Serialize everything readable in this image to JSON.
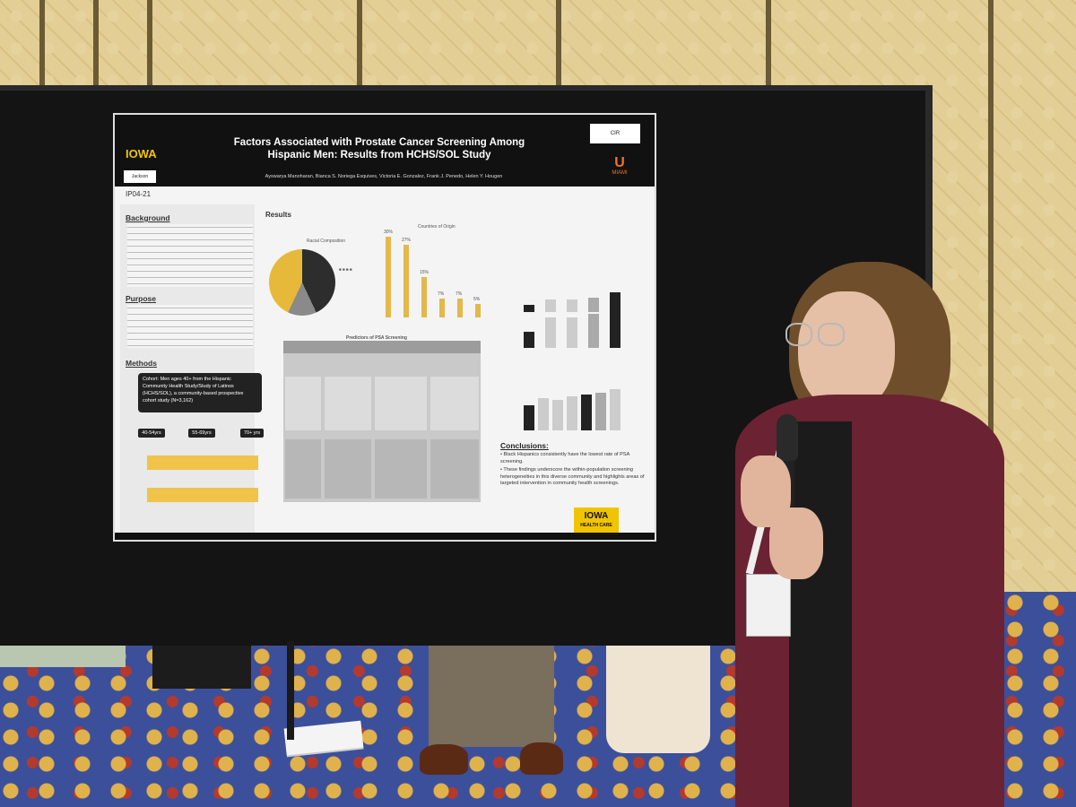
{
  "poster": {
    "title": "Factors Associated with Prostate Cancer Screening Among Hispanic Men: Results from HCHS/SOL Study",
    "authors": "Ayswarya Manoharan, Bianca S. Noriega Esquives, Victoria E. Gonzalez, Frank J. Penedo, Helen Y. Hougen",
    "left_logo": "IOWA",
    "second_logo": "Jackson",
    "code": "IP04-21",
    "right_logo_bottom": "MIAMI",
    "sections": {
      "background": "Background",
      "purpose": "Purpose",
      "methods": "Methods",
      "results": "Results"
    },
    "cohort_box": "Cohort: Men ages 40+ from the Hispanic Community Health Study/Study of Latinos (HCHS/SOL), a community-based prospective cohort study (N=3,162)",
    "age_groups": [
      "40-54yrs",
      "55-69yrs",
      "70+ yrs"
    ],
    "pie_title": "Racial Composition",
    "bar_title": "Countries of Origin",
    "table_title": "Predictors of PSA Screening",
    "conclusions_head": "Conclusions:",
    "conclusions": [
      "Black Hispanics consistently have the lowest rate of PSA screening.",
      "These findings underscore the within-population screening heterogeneities in this diverse community and highlights areas of targeted intervention in community health screenings."
    ],
    "iowa_hc": "IOWA",
    "iowa_hc_sub": "HEALTH CARE",
    "bar_values": [
      30,
      27,
      15,
      7,
      7,
      5
    ],
    "bar_value_labels": [
      "30%",
      "27%",
      "15%",
      "7%",
      "7%",
      "5%"
    ]
  }
}
